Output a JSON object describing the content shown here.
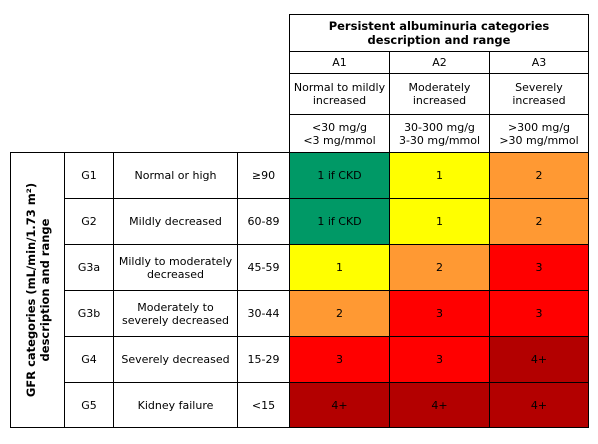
{
  "albuminuria": {
    "title_line1": "Persistent albuminuria categories",
    "title_line2": "description and range",
    "categories": [
      {
        "code": "A1",
        "desc_line1": "Normal to mildly",
        "desc_line2": "increased",
        "range_line1": "<30 mg/g",
        "range_line2": "<3 mg/mmol"
      },
      {
        "code": "A2",
        "desc_line1": "Moderately",
        "desc_line2": "increased",
        "range_line1": "30-300 mg/g",
        "range_line2": "3-30 mg/mmol"
      },
      {
        "code": "A3",
        "desc_line1": "Severely",
        "desc_line2": "increased",
        "range_line1": ">300 mg/g",
        "range_line2": ">30 mg/mmol"
      }
    ]
  },
  "gfr": {
    "title_line1": "GFR categories (mL/min/1.73 m²)",
    "title_line2": "description and range",
    "rows": [
      {
        "code": "G1",
        "desc_line1": "Normal or high",
        "desc_line2": "",
        "range": "≥90",
        "cells": [
          {
            "text": "1 if CKD",
            "color": "#009966"
          },
          {
            "text": "1",
            "color": "#ffff00"
          },
          {
            "text": "2",
            "color": "#ff9933"
          }
        ]
      },
      {
        "code": "G2",
        "desc_line1": "Mildly decreased",
        "desc_line2": "",
        "range": "60-89",
        "cells": [
          {
            "text": "1 if CKD",
            "color": "#009966"
          },
          {
            "text": "1",
            "color": "#ffff00"
          },
          {
            "text": "2",
            "color": "#ff9933"
          }
        ]
      },
      {
        "code": "G3a",
        "desc_line1": "Mildly to moderately",
        "desc_line2": "decreased",
        "range": "45-59",
        "cells": [
          {
            "text": "1",
            "color": "#ffff00"
          },
          {
            "text": "2",
            "color": "#ff9933"
          },
          {
            "text": "3",
            "color": "#ff0000"
          }
        ]
      },
      {
        "code": "G3b",
        "desc_line1": "Moderately to",
        "desc_line2": "severely decreased",
        "range": "30-44",
        "cells": [
          {
            "text": "2",
            "color": "#ff9933"
          },
          {
            "text": "3",
            "color": "#ff0000"
          },
          {
            "text": "3",
            "color": "#ff0000"
          }
        ]
      },
      {
        "code": "G4",
        "desc_line1": "Severely decreased",
        "desc_line2": "",
        "range": "15-29",
        "cells": [
          {
            "text": "3",
            "color": "#ff0000"
          },
          {
            "text": "3",
            "color": "#ff0000"
          },
          {
            "text": "4+",
            "color": "#b30000"
          }
        ]
      },
      {
        "code": "G5",
        "desc_line1": "Kidney failure",
        "desc_line2": "",
        "range": "<15",
        "cells": [
          {
            "text": "4+",
            "color": "#b30000"
          },
          {
            "text": "4+",
            "color": "#b30000"
          },
          {
            "text": "4+",
            "color": "#b30000"
          }
        ]
      }
    ]
  }
}
